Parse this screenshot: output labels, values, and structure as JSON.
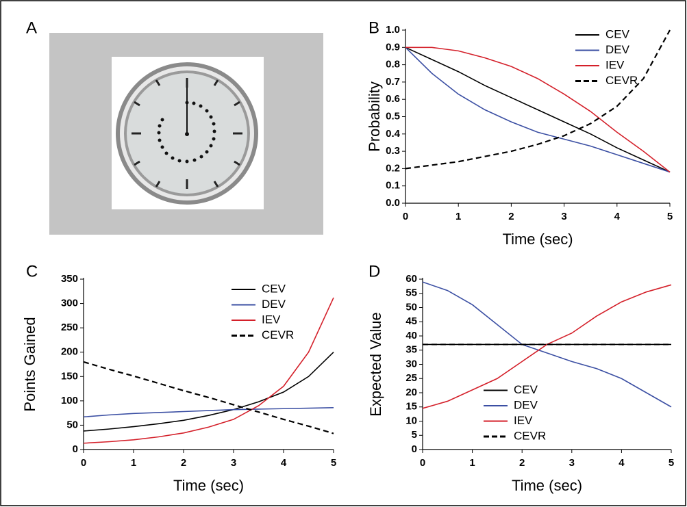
{
  "panel_labels": [
    "A",
    "B",
    "C",
    "D"
  ],
  "chart_data": [
    {
      "type": "line",
      "x_label": "Time (sec)",
      "y_label": "Probability",
      "x": [
        0,
        0.5,
        1,
        1.5,
        2,
        2.5,
        3,
        3.5,
        4,
        4.5,
        5
      ],
      "xlim": [
        0,
        5
      ],
      "xticks": [
        0,
        1,
        2,
        3,
        4,
        5
      ],
      "ylim": [
        0,
        1
      ],
      "yticks": [
        {
          "value": 0,
          "label": "0.0"
        },
        0.1,
        0.2,
        0.3,
        0.4,
        0.5,
        0.6,
        0.7,
        0.8,
        0.9,
        {
          "value": 1,
          "label": "1.0"
        }
      ],
      "legend": "top-right",
      "series": [
        {
          "name": "CEV",
          "color": "#000000",
          "dashed": false,
          "values": [
            0.9,
            0.83,
            0.76,
            0.68,
            0.61,
            0.54,
            0.47,
            0.4,
            0.32,
            0.25,
            0.18
          ]
        },
        {
          "name": "DEV",
          "color": "#3b4fa3",
          "dashed": false,
          "values": [
            0.9,
            0.75,
            0.63,
            0.54,
            0.47,
            0.41,
            0.37,
            0.33,
            0.28,
            0.23,
            0.18
          ]
        },
        {
          "name": "IEV",
          "color": "#d4202a",
          "dashed": false,
          "values": [
            0.9,
            0.9,
            0.88,
            0.84,
            0.79,
            0.72,
            0.63,
            0.53,
            0.41,
            0.3,
            0.18
          ]
        },
        {
          "name": "CEVR",
          "color": "#000000",
          "dashed": true,
          "values": [
            0.2,
            0.22,
            0.24,
            0.27,
            0.3,
            0.34,
            0.39,
            0.46,
            0.56,
            0.72,
            1.0
          ]
        }
      ]
    },
    {
      "type": "line",
      "x_label": "Time (sec)",
      "y_label": "Points Gained",
      "x": [
        0,
        0.5,
        1,
        1.5,
        2,
        2.5,
        3,
        3.5,
        4,
        4.5,
        5
      ],
      "xlim": [
        0,
        5
      ],
      "xticks": [
        0,
        1,
        2,
        3,
        4,
        5
      ],
      "ylim": [
        0,
        350
      ],
      "yticks": [
        0,
        50,
        100,
        150,
        200,
        250,
        300,
        350
      ],
      "legend": "top-right",
      "series": [
        {
          "name": "CEV",
          "color": "#000000",
          "dashed": false,
          "values": [
            38,
            42,
            47,
            53,
            60,
            70,
            82,
            98,
            118,
            150,
            200
          ]
        },
        {
          "name": "DEV",
          "color": "#3b4fa3",
          "dashed": false,
          "values": [
            67,
            71,
            74,
            76,
            78,
            80,
            82,
            83,
            84,
            85,
            86
          ]
        },
        {
          "name": "IEV",
          "color": "#d4202a",
          "dashed": false,
          "values": [
            13,
            16,
            20,
            26,
            34,
            46,
            62,
            90,
            130,
            200,
            312
          ]
        },
        {
          "name": "CEVR",
          "color": "#000000",
          "dashed": true,
          "values": [
            180,
            165,
            151,
            136,
            121,
            107,
            92,
            77,
            62,
            48,
            33
          ]
        }
      ]
    },
    {
      "type": "line",
      "x_label": "Time (sec)",
      "y_label": "Expected Value",
      "x": [
        0,
        0.5,
        1,
        1.5,
        2,
        2.5,
        3,
        3.5,
        4,
        4.5,
        5
      ],
      "xlim": [
        0,
        5
      ],
      "xticks": [
        0,
        1,
        2,
        3,
        4,
        5
      ],
      "ylim": [
        0,
        60
      ],
      "yticks": [
        0,
        5,
        10,
        15,
        20,
        25,
        30,
        35,
        40,
        45,
        50,
        55,
        60
      ],
      "legend": "bottom-right",
      "series": [
        {
          "name": "CEV",
          "color": "#000000",
          "dashed": false,
          "values": [
            37,
            37,
            37,
            37,
            37,
            37,
            37,
            37,
            37,
            37,
            37
          ]
        },
        {
          "name": "DEV",
          "color": "#3b4fa3",
          "dashed": false,
          "values": [
            59,
            56,
            51,
            44,
            37,
            34,
            31,
            28.5,
            25,
            20,
            15
          ]
        },
        {
          "name": "IEV",
          "color": "#d4202a",
          "dashed": false,
          "values": [
            14.5,
            17,
            21,
            25,
            31,
            37,
            41,
            47,
            52,
            55.5,
            58
          ]
        },
        {
          "name": "CEVR",
          "color": "#000000",
          "dashed": true,
          "values": [
            37,
            37,
            37,
            37,
            37,
            37,
            37,
            37,
            37,
            37,
            37
          ]
        }
      ]
    }
  ]
}
